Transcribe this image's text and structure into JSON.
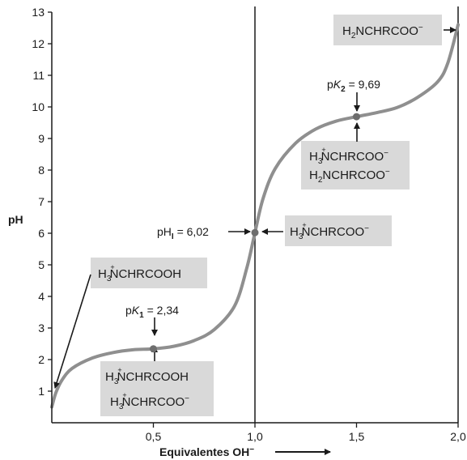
{
  "chart_data": {
    "type": "line",
    "title": "",
    "xlabel": "Equivalentes OH",
    "xlabel_sup": "−",
    "ylabel": "pH",
    "xlim": [
      0,
      2.0
    ],
    "ylim": [
      0,
      13
    ],
    "x_ticks": [
      0.5,
      1.0,
      1.5,
      2.0
    ],
    "x_tick_labels": [
      "0,5",
      "1,0",
      "1,5",
      "2,0"
    ],
    "y_ticks": [
      1,
      2,
      3,
      4,
      5,
      6,
      7,
      8,
      9,
      10,
      11,
      12,
      13
    ],
    "y_tick_labels": [
      "1",
      "2",
      "3",
      "4",
      "5",
      "6",
      "7",
      "8",
      "9",
      "10",
      "11",
      "12",
      "13"
    ],
    "grid": false,
    "legend": false,
    "series": [
      {
        "color": "#8f8f8f",
        "points": [
          [
            0.0,
            0.5
          ],
          [
            0.02,
            0.95
          ],
          [
            0.05,
            1.35
          ],
          [
            0.1,
            1.72
          ],
          [
            0.2,
            2.05
          ],
          [
            0.3,
            2.22
          ],
          [
            0.4,
            2.31
          ],
          [
            0.5,
            2.34
          ],
          [
            0.6,
            2.42
          ],
          [
            0.7,
            2.6
          ],
          [
            0.8,
            2.95
          ],
          [
            0.9,
            3.7
          ],
          [
            0.96,
            4.9
          ],
          [
            1.0,
            6.02
          ],
          [
            1.04,
            7.1
          ],
          [
            1.1,
            8.05
          ],
          [
            1.2,
            8.85
          ],
          [
            1.3,
            9.3
          ],
          [
            1.4,
            9.55
          ],
          [
            1.5,
            9.69
          ],
          [
            1.6,
            9.82
          ],
          [
            1.7,
            9.98
          ],
          [
            1.8,
            10.3
          ],
          [
            1.9,
            10.8
          ],
          [
            1.95,
            11.4
          ],
          [
            2.0,
            12.6
          ]
        ]
      }
    ],
    "vertical_lines": [
      1.0,
      2.0
    ],
    "marked_points": [
      {
        "x": 0.5,
        "y": 2.34
      },
      {
        "x": 1.0,
        "y": 6.02
      },
      {
        "x": 1.5,
        "y": 9.69
      }
    ],
    "annotations": {
      "pk1": {
        "prefix": "p",
        "symbol": "K",
        "sub": "1",
        "value": " = 2,34"
      },
      "pi": {
        "prefix": "pH",
        "sub": "I",
        "value": " = 6,02"
      },
      "pk2": {
        "prefix": "p",
        "symbol": "K",
        "sub": "2",
        "value": " = 9,69"
      }
    },
    "species_boxes": {
      "cation": [
        {
          "a": "H",
          "sub": "3",
          "charge": "+",
          "b": "NCHRCOOH"
        }
      ],
      "cation_zwitterion": [
        {
          "a": "H",
          "sub": "3",
          "charge": "+",
          "b": "NCHRCOOH"
        },
        {
          "a": "H",
          "sub": "3",
          "charge": "+",
          "b": "NCHRCOO",
          "sup": "−"
        }
      ],
      "zwitterion": [
        {
          "a": "H",
          "sub": "3",
          "charge": "+",
          "b": "NCHRCOO",
          "sup": "−"
        }
      ],
      "zwitterion_anion": [
        {
          "a": "H",
          "sub": "3",
          "charge": "+",
          "b": "NCHRCOO",
          "sup": "−"
        },
        {
          "a": "H",
          "sub": "2",
          "charge": "",
          "b": "NCHRCOO",
          "sup": "−"
        }
      ],
      "anion": [
        {
          "a": "H",
          "sub": "2",
          "charge": "",
          "b": "NCHRCOO",
          "sup": "−"
        }
      ]
    },
    "colors": {
      "curve": "#8f8f8f",
      "point": "#6e6e6e",
      "box": "#d9d9d9",
      "axis": "#1a1a1a"
    }
  }
}
